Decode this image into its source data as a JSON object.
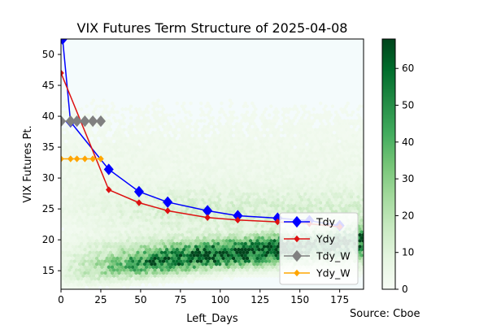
{
  "chart_data": {
    "type": "line",
    "title": "VIX Futures Term Structure of 2025-04-08",
    "xlabel": "Left_Days",
    "ylabel": "VIX Futures Pt.",
    "xlim": [
      0,
      190
    ],
    "ylim": [
      12,
      52.5
    ],
    "xticks": [
      "0",
      "25",
      "50",
      "75",
      "100",
      "125",
      "150",
      "175"
    ],
    "yticks": [
      "15",
      "20",
      "25",
      "30",
      "35",
      "40",
      "45",
      "50"
    ],
    "source": "Source: Cboe",
    "legend_position": "lower-right",
    "background": {
      "type": "hexbin-density",
      "colormap": "Greens",
      "colorbar_range": [
        0,
        68
      ],
      "colorbar_ticks": [
        "0",
        "10",
        "20",
        "30",
        "40",
        "50",
        "60"
      ]
    },
    "series": [
      {
        "name": "Tdy",
        "color": "#0000ff",
        "marker": "diamond-large",
        "points": [
          [
            1,
            52.5
          ],
          [
            6,
            39.1
          ],
          [
            30,
            31.4
          ],
          [
            49,
            27.8
          ],
          [
            67,
            26.1
          ],
          [
            92,
            24.7
          ],
          [
            111,
            23.9
          ],
          [
            136,
            23.5
          ],
          [
            156,
            23.1
          ],
          [
            175,
            22.3
          ]
        ]
      },
      {
        "name": "Ydy",
        "color": "#dd1111",
        "marker": "diamond-small",
        "points": [
          [
            0,
            47.0
          ],
          [
            30,
            28.1
          ],
          [
            49,
            26.0
          ],
          [
            67,
            24.7
          ],
          [
            92,
            23.6
          ],
          [
            111,
            23.2
          ],
          [
            136,
            22.9
          ],
          [
            156,
            22.6
          ],
          [
            175,
            22.1
          ]
        ]
      },
      {
        "name": "Tdy_W",
        "color": "#808080",
        "marker": "diamond-large",
        "points": [
          [
            0,
            39.2
          ],
          [
            6,
            39.2
          ],
          [
            10,
            39.2
          ],
          [
            15,
            39.2
          ],
          [
            20,
            39.2
          ],
          [
            25,
            39.2
          ]
        ]
      },
      {
        "name": "Ydy_W",
        "color": "#ffa500",
        "marker": "diamond-small",
        "points": [
          [
            0,
            33.1
          ],
          [
            6,
            33.1
          ],
          [
            10,
            33.1
          ],
          [
            15,
            33.1
          ],
          [
            20,
            33.1
          ],
          [
            25,
            33.1
          ]
        ]
      }
    ]
  }
}
